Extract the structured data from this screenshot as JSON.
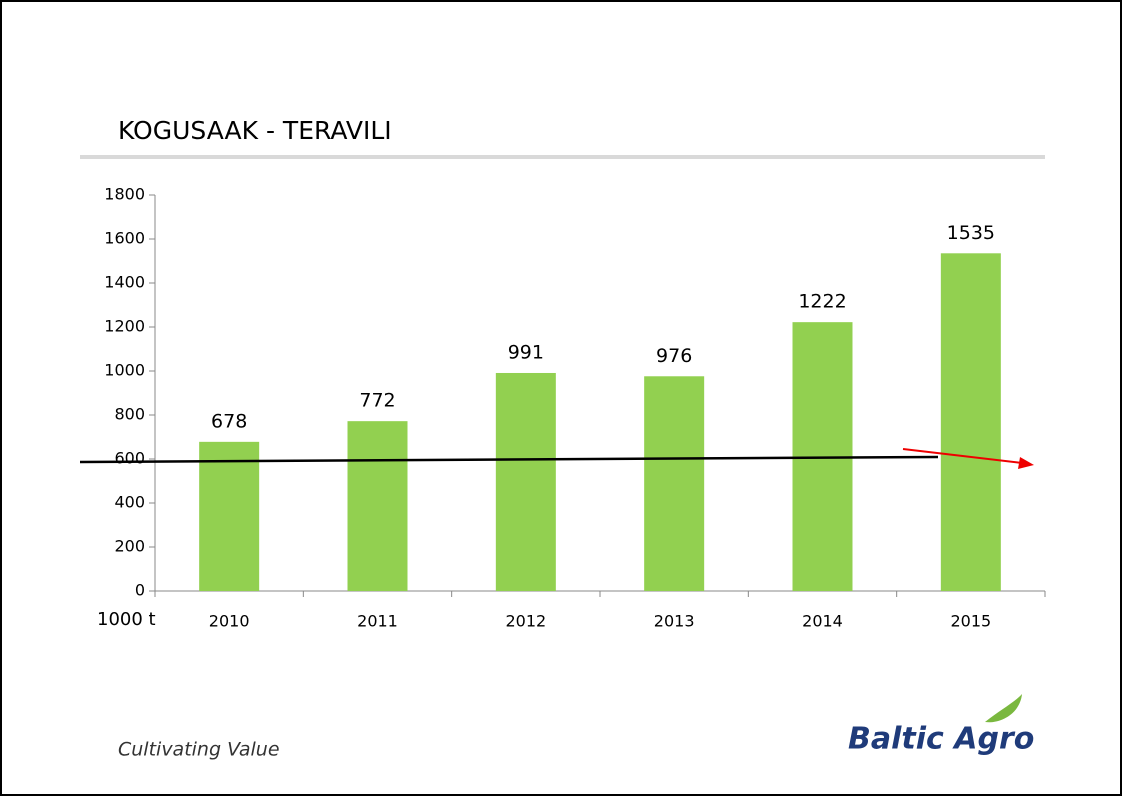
{
  "chart_data": {
    "type": "bar",
    "title": "KOGUSAAK - TERAVILI",
    "y_unit_label": "1000 t",
    "categories": [
      "2010",
      "2011",
      "2012",
      "2013",
      "2014",
      "2015"
    ],
    "values": [
      678,
      772,
      991,
      976,
      1222,
      1535
    ],
    "color": "#92d050",
    "ylim": [
      0,
      1800
    ],
    "yticks": [
      0,
      200,
      400,
      600,
      800,
      1000,
      1200,
      1400,
      1600,
      1800
    ]
  },
  "footer": {
    "tagline": "Cultivating Value",
    "logo": "Baltic Agro"
  }
}
